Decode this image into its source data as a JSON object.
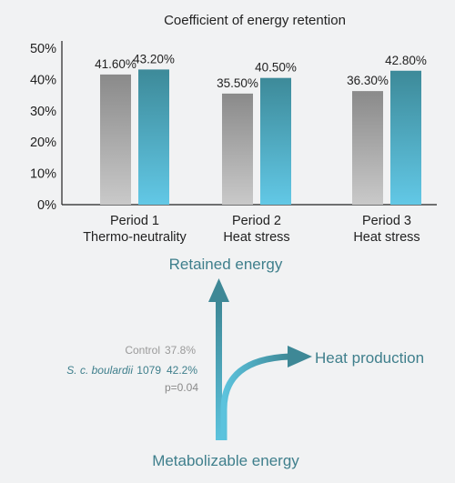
{
  "chart_data": {
    "type": "bar",
    "title": "Coefficient of energy retention",
    "categories": [
      [
        "Period 1",
        "Thermo-neutrality"
      ],
      [
        "Period 2",
        "Heat stress"
      ],
      [
        "Period 3",
        "Heat stress"
      ]
    ],
    "series": [
      {
        "values": [
          41.6,
          35.5,
          36.3
        ],
        "labels": [
          "41.60%",
          "35.50%",
          "36.30%"
        ],
        "color": "#8f8f8f"
      },
      {
        "values": [
          43.2,
          40.5,
          42.8
        ],
        "labels": [
          "43.20%",
          "40.50%",
          "42.80%"
        ],
        "color": "#3e8f9e"
      }
    ],
    "ylim": [
      0,
      50
    ],
    "yticks": [
      "0%",
      "10%",
      "20%",
      "30%",
      "40%",
      "50%"
    ],
    "ytick_values": [
      0,
      10,
      20,
      30,
      40,
      50
    ],
    "grid": false
  },
  "diagram": {
    "retained_label": "Retained energy",
    "heat_label": "Heat production",
    "source_label": "Metabolizable energy",
    "control_label": "Control",
    "control_value": "37.8%",
    "treatment_label": "S. c. boulardii",
    "treatment_code": "1079",
    "treatment_value": "42.2%",
    "pvalue": "p=0.04",
    "arrow_color": "#4fb3c9",
    "text_color": "#3f7f8c"
  }
}
